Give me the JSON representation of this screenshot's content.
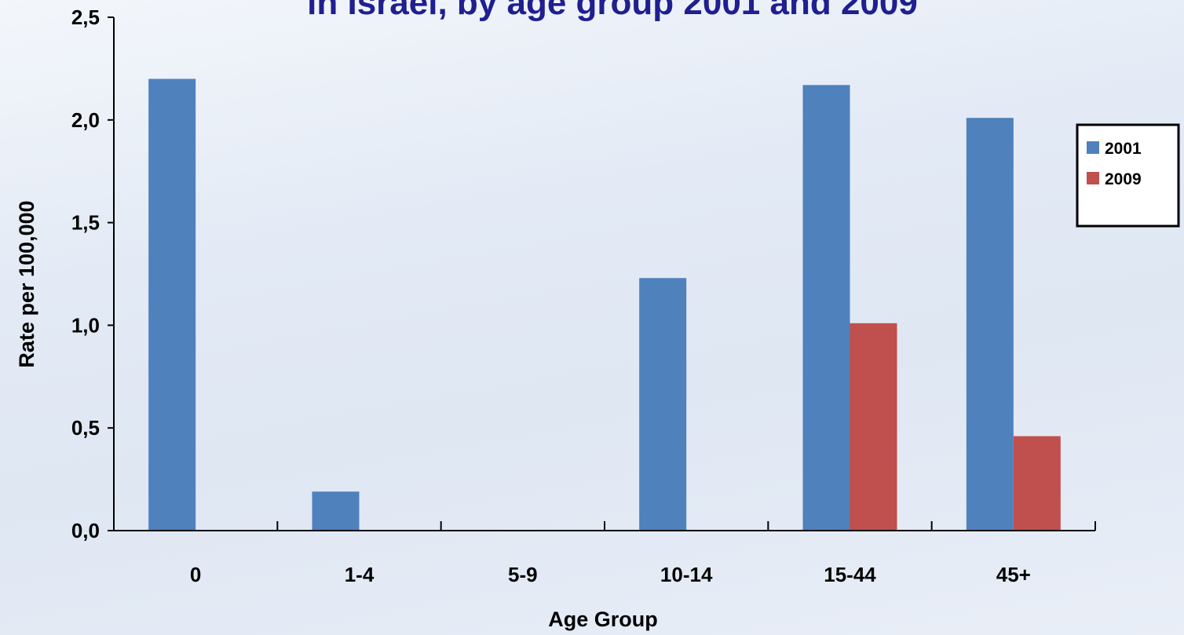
{
  "chart_data": {
    "type": "bar",
    "title": "in Israel, by age group 2001 and 2009",
    "xlabel": "Age Group",
    "ylabel": "Rate per 100,000",
    "categories": [
      "0",
      "1-4",
      "5-9",
      "10-14",
      "15-44",
      "45+"
    ],
    "series": [
      {
        "name": "2001",
        "color": "#4f81bd",
        "values": [
          2.2,
          0.19,
          0,
          1.23,
          2.17,
          2.01
        ]
      },
      {
        "name": "2009",
        "color": "#c0504d",
        "values": [
          0,
          0,
          0,
          0,
          1.01,
          0.46
        ]
      }
    ],
    "ylim": [
      0,
      2.5
    ],
    "yticks": [
      "0,0",
      "0,5",
      "1,0",
      "1,5",
      "2,0",
      "2,5"
    ],
    "ytick_values": [
      0,
      0.5,
      1.0,
      1.5,
      2.0,
      2.5
    ],
    "grid": false,
    "legend_position": "right"
  }
}
